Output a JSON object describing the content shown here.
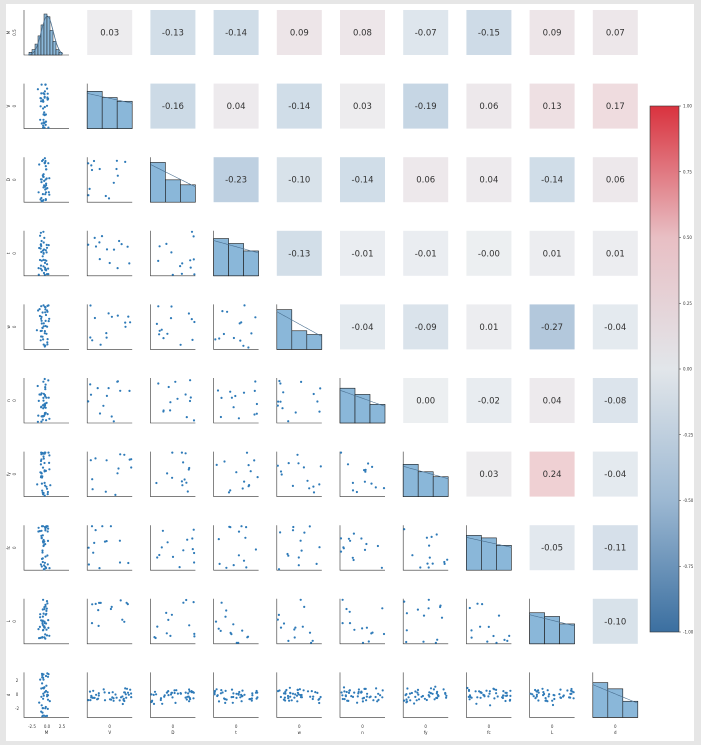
{
  "chart_data": {
    "type": "pairplot",
    "variables": [
      "M",
      "V",
      "D",
      "t",
      "w",
      "n",
      "fy",
      "fc",
      "L",
      "d"
    ],
    "correlations": [
      [
        null,
        0.03,
        -0.13,
        -0.14,
        0.09,
        0.08,
        -0.07,
        -0.15,
        0.09,
        0.07
      ],
      [
        null,
        null,
        -0.16,
        0.04,
        -0.14,
        0.03,
        -0.19,
        0.06,
        0.13,
        0.17
      ],
      [
        null,
        null,
        null,
        -0.23,
        -0.1,
        -0.14,
        0.06,
        0.04,
        -0.14,
        0.06
      ],
      [
        null,
        null,
        null,
        null,
        -0.13,
        -0.01,
        -0.01,
        -0.0,
        0.01,
        0.01
      ],
      [
        null,
        null,
        null,
        null,
        null,
        -0.04,
        -0.09,
        0.01,
        -0.27,
        -0.04
      ],
      [
        null,
        null,
        null,
        null,
        null,
        null,
        0.0,
        -0.02,
        0.04,
        -0.08
      ],
      [
        null,
        null,
        null,
        null,
        null,
        null,
        null,
        0.03,
        0.24,
        -0.04
      ],
      [
        null,
        null,
        null,
        null,
        null,
        null,
        null,
        null,
        -0.05,
        -0.11
      ],
      [
        null,
        null,
        null,
        null,
        null,
        null,
        null,
        null,
        null,
        -0.1
      ],
      [
        null,
        null,
        null,
        null,
        null,
        null,
        null,
        null,
        null,
        null
      ]
    ],
    "correlation_labels": [
      [
        null,
        "0.03",
        "-0.13",
        "-0.14",
        "0.09",
        "0.08",
        "-0.07",
        "-0.15",
        "0.09",
        "0.07"
      ],
      [
        null,
        null,
        "-0.16",
        "0.04",
        "-0.14",
        "0.03",
        "-0.19",
        "0.06",
        "0.13",
        "0.17"
      ],
      [
        null,
        null,
        null,
        "-0.23",
        "-0.10",
        "-0.14",
        "0.06",
        "0.04",
        "-0.14",
        "0.06"
      ],
      [
        null,
        null,
        null,
        null,
        "-0.13",
        "-0.01",
        "-0.01",
        "-0.00",
        "0.01",
        "0.01"
      ],
      [
        null,
        null,
        null,
        null,
        null,
        "-0.04",
        "-0.09",
        "0.01",
        "-0.27",
        "-0.04"
      ],
      [
        null,
        null,
        null,
        null,
        null,
        null,
        "0.00",
        "-0.02",
        "0.04",
        "-0.08"
      ],
      [
        null,
        null,
        null,
        null,
        null,
        null,
        null,
        "0.03",
        "0.24",
        "-0.04"
      ],
      [
        null,
        null,
        null,
        null,
        null,
        null,
        null,
        null,
        "-0.05",
        "-0.11"
      ],
      [
        null,
        null,
        null,
        null,
        null,
        null,
        null,
        null,
        null,
        "-0.10"
      ],
      [
        null,
        null,
        null,
        null,
        null,
        null,
        null,
        null,
        null,
        null
      ]
    ],
    "first_histogram": {
      "bins": [
        -2.2,
        -1.8,
        -1.4,
        -1.0,
        -0.6,
        -0.2,
        0.2,
        0.6,
        1.0,
        1.4,
        1.8,
        2.2
      ],
      "counts": [
        1,
        2,
        4,
        7,
        11,
        15,
        14,
        9,
        5,
        2,
        1
      ]
    },
    "other_histograms": {
      "V": [
        3.0,
        2.5,
        2.2
      ],
      "D": [
        3.2,
        1.8,
        1.4
      ],
      "t": [
        3.0,
        2.6,
        2.0
      ],
      "w": [
        3.2,
        1.5,
        1.2
      ],
      "n": [
        2.8,
        2.3,
        1.5
      ],
      "fy": [
        2.6,
        2.0,
        1.6
      ],
      "fc": [
        2.8,
        2.6,
        2.0
      ],
      "L": [
        2.5,
        2.2,
        1.6
      ],
      "d": [
        2.8,
        2.3,
        1.3
      ]
    },
    "tick_labels": {
      "first_row_y": [
        "0.5"
      ],
      "row_y_zero": [
        "0"
      ],
      "bottom_first_x": [
        "-2.5",
        "0.0",
        "2.5"
      ],
      "bottom_x_zero": [
        "0"
      ],
      "bottom_left_y": [
        "2",
        "0",
        "-2"
      ]
    },
    "colorbar": {
      "vmin": -1.0,
      "vmax": 1.0,
      "colors": [
        "#3b6fa0",
        "#9cb8d2",
        "#e2e6ea",
        "#e8bfc4",
        "#d9323e"
      ],
      "tick_labels": [
        "1.00",
        "0.75",
        "0.50",
        "0.25",
        "0.00",
        "-0.25",
        "-0.50",
        "-0.75",
        "-1.00"
      ]
    },
    "colors": {
      "histogram_fill": "#8ab7d9",
      "histogram_edge": "#1a1a1a",
      "scatter_point": "#2e7ab8",
      "kde_line": "#4a6f90",
      "corr_text": "#333333"
    },
    "grid": false
  }
}
